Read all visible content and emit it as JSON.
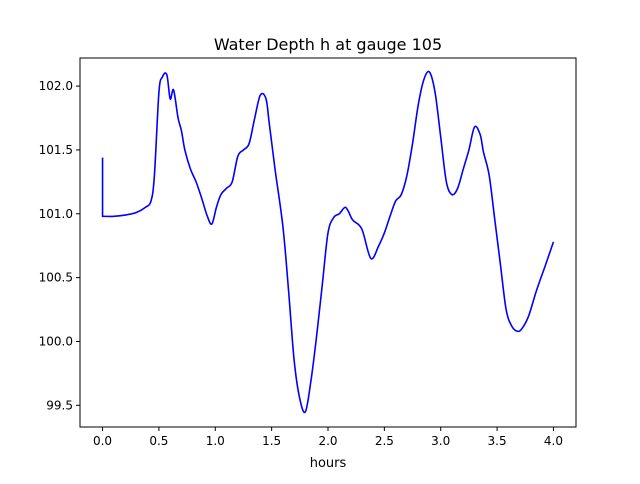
{
  "chart_data": {
    "type": "line",
    "title": "Water Depth h at gauge 105",
    "xlabel": "hours",
    "ylabel": "",
    "xlim": [
      -0.2,
      4.2
    ],
    "ylim": [
      99.33,
      102.22
    ],
    "grid": false,
    "legend": "none",
    "x_ticks": [
      "0.0",
      "0.5",
      "1.0",
      "1.5",
      "2.0",
      "2.5",
      "3.0",
      "3.5",
      "4.0"
    ],
    "y_ticks": [
      "99.5",
      "100.0",
      "100.5",
      "101.0",
      "101.5",
      "102.0"
    ],
    "series": [
      {
        "color": "#0000ff",
        "x": [
          0.0,
          0.0,
          0.01,
          0.1,
          0.2,
          0.3,
          0.38,
          0.43,
          0.46,
          0.5,
          0.53,
          0.57,
          0.6,
          0.63,
          0.67,
          0.7,
          0.73,
          0.78,
          0.83,
          0.88,
          0.93,
          0.97,
          1.01,
          1.05,
          1.1,
          1.15,
          1.2,
          1.25,
          1.3,
          1.35,
          1.4,
          1.45,
          1.48,
          1.53,
          1.6,
          1.65,
          1.7,
          1.75,
          1.8,
          1.85,
          1.9,
          1.95,
          2.0,
          2.05,
          2.1,
          2.15,
          2.18,
          2.22,
          2.3,
          2.38,
          2.45,
          2.5,
          2.55,
          2.6,
          2.65,
          2.7,
          2.75,
          2.8,
          2.85,
          2.9,
          2.95,
          3.0,
          3.05,
          3.1,
          3.15,
          3.2,
          3.25,
          3.3,
          3.35,
          3.38,
          3.43,
          3.48,
          3.53,
          3.58,
          3.63,
          3.68,
          3.72,
          3.78,
          3.85,
          3.93,
          4.0
        ],
        "values": [
          101.44,
          100.98,
          100.98,
          100.98,
          100.99,
          101.01,
          101.05,
          101.1,
          101.3,
          101.95,
          102.07,
          102.09,
          101.9,
          101.97,
          101.75,
          101.65,
          101.5,
          101.35,
          101.25,
          101.12,
          100.98,
          100.92,
          101.05,
          101.15,
          101.2,
          101.25,
          101.45,
          101.5,
          101.55,
          101.75,
          101.93,
          101.9,
          101.7,
          101.35,
          100.9,
          100.4,
          99.85,
          99.55,
          99.45,
          99.7,
          100.05,
          100.45,
          100.85,
          100.97,
          101.0,
          101.05,
          101.02,
          100.95,
          100.88,
          100.65,
          100.75,
          100.85,
          100.98,
          101.1,
          101.15,
          101.3,
          101.55,
          101.85,
          102.05,
          102.11,
          101.95,
          101.6,
          101.25,
          101.15,
          101.2,
          101.35,
          101.5,
          101.68,
          101.62,
          101.48,
          101.3,
          100.95,
          100.6,
          100.25,
          100.12,
          100.08,
          100.1,
          100.2,
          100.4,
          100.6,
          100.78
        ]
      }
    ]
  }
}
